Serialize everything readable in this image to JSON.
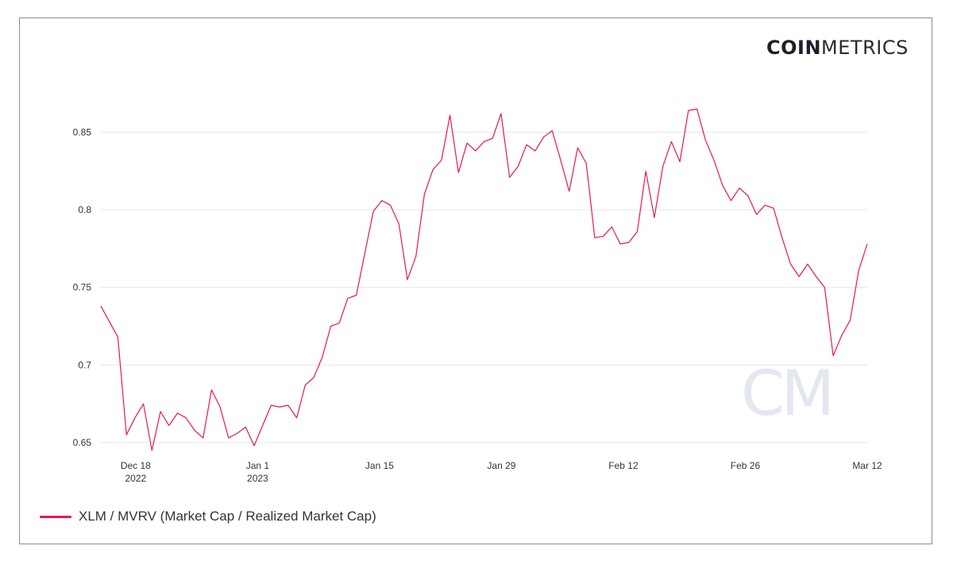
{
  "brand": {
    "logo_bold": "COIN",
    "logo_light": "METRICS",
    "watermark": "CM"
  },
  "colors": {
    "series": "#e5194d",
    "grid": "#e6e6e6",
    "axis_text": "#333333",
    "border": "#8c8c8c"
  },
  "chart_data": {
    "type": "line",
    "title": "",
    "xlabel": "",
    "ylabel": "",
    "x_start": "2022-12-14",
    "x_end": "2023-03-12",
    "ylim": [
      0.65,
      0.87
    ],
    "grid": true,
    "legend_position": "bottom-left",
    "y_ticks": [
      0.65,
      0.7,
      0.75,
      0.8,
      0.85
    ],
    "y_tick_labels": [
      "0.65",
      "0.7",
      "0.75",
      "0.8",
      "0.85"
    ],
    "x_ticks": [
      {
        "date": "2022-12-18",
        "line1": "Dec 18",
        "line2": "2022"
      },
      {
        "date": "2023-01-01",
        "line1": "Jan 1",
        "line2": "2023"
      },
      {
        "date": "2023-01-15",
        "line1": "Jan 15",
        "line2": ""
      },
      {
        "date": "2023-01-29",
        "line1": "Jan 29",
        "line2": ""
      },
      {
        "date": "2023-02-12",
        "line1": "Feb 12",
        "line2": ""
      },
      {
        "date": "2023-02-26",
        "line1": "Feb 26",
        "line2": ""
      },
      {
        "date": "2023-03-12",
        "line1": "Mar 12",
        "line2": ""
      }
    ],
    "series": [
      {
        "name": "XLM / MVRV (Market Cap / Realized Market Cap)",
        "values": [
          0.738,
          0.728,
          0.718,
          0.655,
          0.666,
          0.675,
          0.645,
          0.67,
          0.661,
          0.669,
          0.666,
          0.658,
          0.653,
          0.684,
          0.673,
          0.653,
          0.656,
          0.66,
          0.648,
          0.661,
          0.674,
          0.673,
          0.674,
          0.666,
          0.687,
          0.692,
          0.705,
          0.725,
          0.727,
          0.743,
          0.745,
          0.772,
          0.799,
          0.806,
          0.803,
          0.791,
          0.755,
          0.77,
          0.81,
          0.826,
          0.832,
          0.861,
          0.824,
          0.843,
          0.838,
          0.844,
          0.846,
          0.862,
          0.821,
          0.828,
          0.842,
          0.838,
          0.847,
          0.851,
          0.832,
          0.812,
          0.84,
          0.83,
          0.782,
          0.783,
          0.789,
          0.778,
          0.779,
          0.786,
          0.825,
          0.795,
          0.828,
          0.844,
          0.831,
          0.864,
          0.865,
          0.845,
          0.832,
          0.816,
          0.806,
          0.814,
          0.809,
          0.797,
          0.803,
          0.801,
          0.782,
          0.765,
          0.757,
          0.765,
          0.757,
          0.75,
          0.706,
          0.719,
          0.729,
          0.761,
          0.778
        ]
      }
    ]
  }
}
